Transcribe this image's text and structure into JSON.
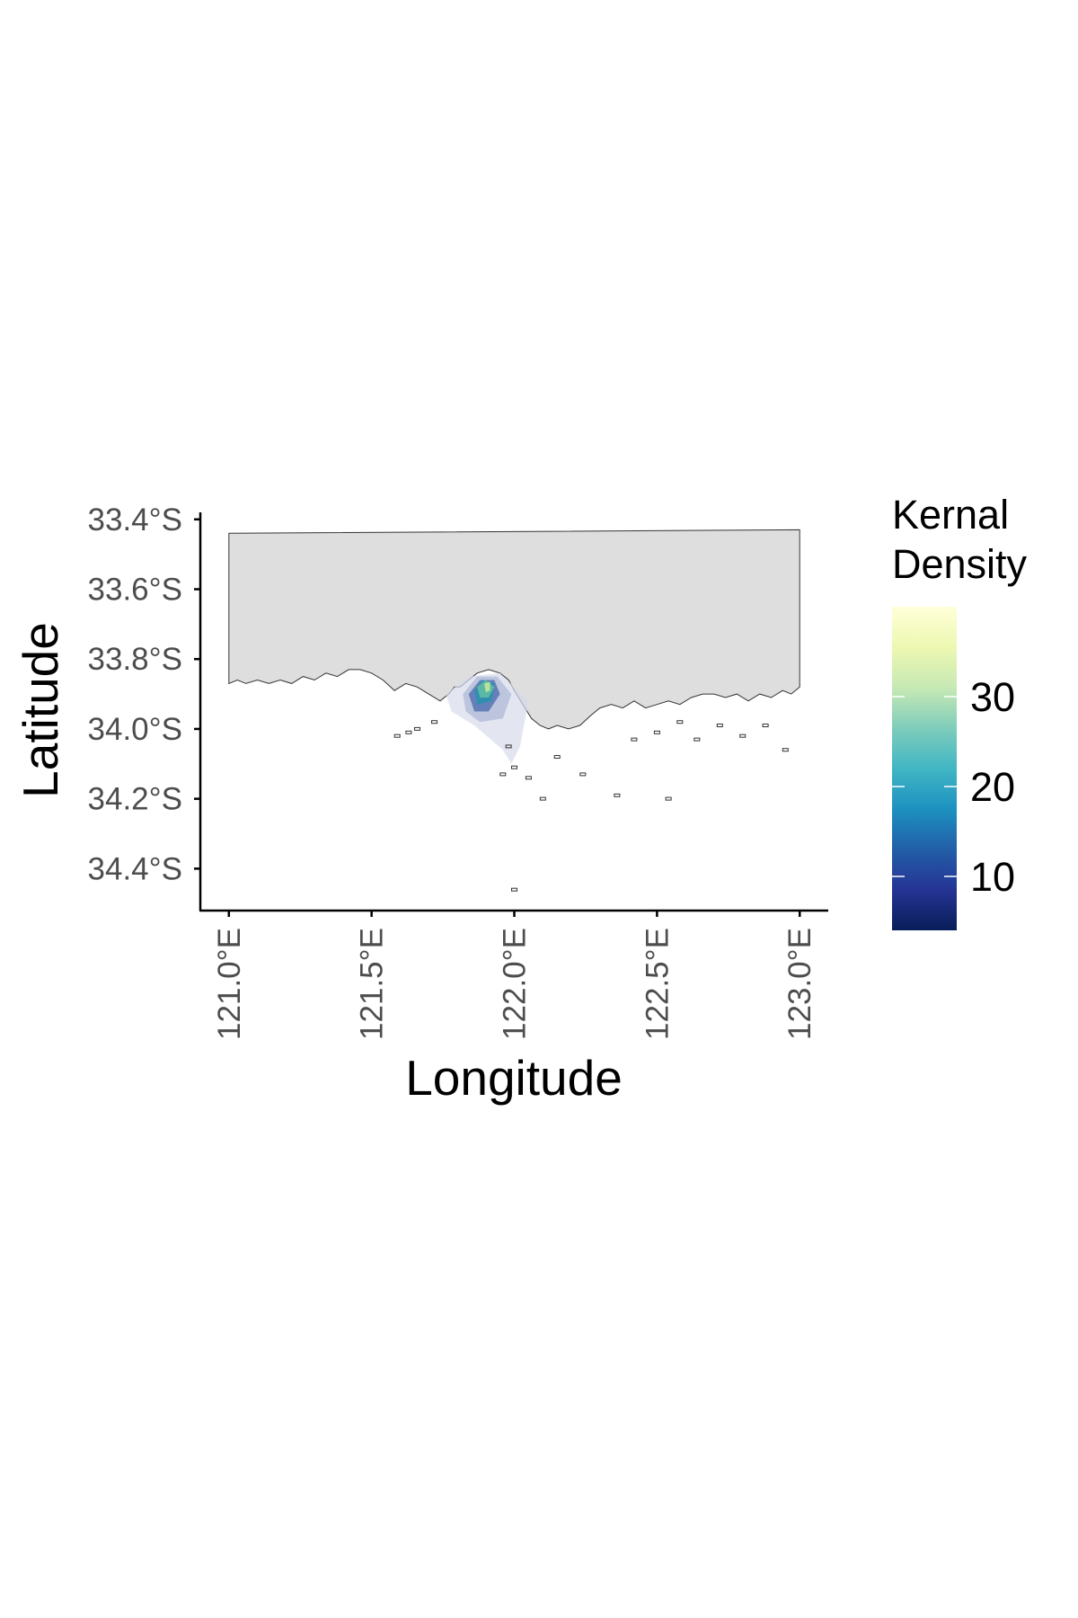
{
  "map": {
    "x_axis": {
      "title": "Longitude",
      "range": [
        120.9,
        123.1
      ],
      "ticks": [
        {
          "value": 121.0,
          "label": "121.0°E"
        },
        {
          "value": 121.5,
          "label": "121.5°E"
        },
        {
          "value": 122.0,
          "label": "122.0°E"
        },
        {
          "value": 122.5,
          "label": "122.5°E"
        },
        {
          "value": 123.0,
          "label": "123.0°E"
        }
      ]
    },
    "y_axis": {
      "title": "Latitude",
      "range": [
        -34.52,
        -33.38
      ],
      "ticks": [
        {
          "value": -33.4,
          "label": "33.4°S"
        },
        {
          "value": -33.6,
          "label": "33.6°S"
        },
        {
          "value": -33.8,
          "label": "33.8°S"
        },
        {
          "value": -34.0,
          "label": "34.0°S"
        },
        {
          "value": -34.2,
          "label": "34.2°S"
        },
        {
          "value": -34.4,
          "label": "34.4°S"
        }
      ]
    },
    "land": {
      "fill": "#dedede",
      "stroke": "#333333",
      "north_edge": [
        [
          121.0,
          -33.44
        ],
        [
          123.0,
          -33.43
        ]
      ],
      "coastline": [
        [
          121.0,
          -33.87
        ],
        [
          121.03,
          -33.86
        ],
        [
          121.06,
          -33.87
        ],
        [
          121.1,
          -33.86
        ],
        [
          121.14,
          -33.87
        ],
        [
          121.18,
          -33.86
        ],
        [
          121.22,
          -33.87
        ],
        [
          121.26,
          -33.85
        ],
        [
          121.3,
          -33.86
        ],
        [
          121.34,
          -33.84
        ],
        [
          121.38,
          -33.85
        ],
        [
          121.42,
          -33.83
        ],
        [
          121.46,
          -33.83
        ],
        [
          121.5,
          -33.84
        ],
        [
          121.54,
          -33.86
        ],
        [
          121.58,
          -33.89
        ],
        [
          121.62,
          -33.87
        ],
        [
          121.66,
          -33.88
        ],
        [
          121.7,
          -33.9
        ],
        [
          121.74,
          -33.92
        ],
        [
          121.77,
          -33.9
        ],
        [
          121.79,
          -33.88
        ],
        [
          121.81,
          -33.88
        ],
        [
          121.84,
          -33.86
        ],
        [
          121.87,
          -33.84
        ],
        [
          121.91,
          -33.83
        ],
        [
          121.95,
          -33.84
        ],
        [
          121.98,
          -33.86
        ],
        [
          122.0,
          -33.89
        ],
        [
          122.03,
          -33.93
        ],
        [
          122.06,
          -33.97
        ],
        [
          122.09,
          -33.99
        ],
        [
          122.12,
          -34.0
        ],
        [
          122.15,
          -33.99
        ],
        [
          122.19,
          -34.0
        ],
        [
          122.23,
          -33.99
        ],
        [
          122.27,
          -33.96
        ],
        [
          122.3,
          -33.94
        ],
        [
          122.34,
          -33.93
        ],
        [
          122.38,
          -33.94
        ],
        [
          122.42,
          -33.92
        ],
        [
          122.46,
          -33.94
        ],
        [
          122.5,
          -33.93
        ],
        [
          122.54,
          -33.92
        ],
        [
          122.58,
          -33.93
        ],
        [
          122.62,
          -33.91
        ],
        [
          122.66,
          -33.9
        ],
        [
          122.7,
          -33.9
        ],
        [
          122.74,
          -33.91
        ],
        [
          122.78,
          -33.9
        ],
        [
          122.82,
          -33.92
        ],
        [
          122.86,
          -33.9
        ],
        [
          122.9,
          -33.91
        ],
        [
          122.94,
          -33.89
        ],
        [
          122.97,
          -33.9
        ],
        [
          123.0,
          -33.88
        ]
      ],
      "islands": [
        [
          121.59,
          -34.02
        ],
        [
          121.63,
          -34.01
        ],
        [
          121.66,
          -34.0
        ],
        [
          121.72,
          -33.98
        ],
        [
          121.98,
          -34.05
        ],
        [
          122.0,
          -34.11
        ],
        [
          121.96,
          -34.13
        ],
        [
          122.05,
          -34.14
        ],
        [
          122.15,
          -34.08
        ],
        [
          122.24,
          -34.13
        ],
        [
          122.1,
          -34.2
        ],
        [
          122.36,
          -34.19
        ],
        [
          122.42,
          -34.03
        ],
        [
          122.5,
          -34.01
        ],
        [
          122.58,
          -33.98
        ],
        [
          122.64,
          -34.03
        ],
        [
          122.72,
          -33.99
        ],
        [
          122.8,
          -34.02
        ],
        [
          122.88,
          -33.99
        ],
        [
          122.95,
          -34.06
        ],
        [
          122.54,
          -34.2
        ],
        [
          122.0,
          -34.46
        ]
      ]
    },
    "density_contours": [
      {
        "level": 3,
        "color": "#d7dceb",
        "points": [
          [
            121.76,
            -33.9
          ],
          [
            121.84,
            -33.85
          ],
          [
            121.95,
            -33.84
          ],
          [
            122.05,
            -33.92
          ],
          [
            122.02,
            -34.05
          ],
          [
            121.99,
            -34.1
          ],
          [
            121.96,
            -34.06
          ],
          [
            121.86,
            -33.99
          ],
          [
            121.78,
            -33.95
          ]
        ]
      },
      {
        "level": 8,
        "color": "#b8c1dc",
        "points": [
          [
            121.82,
            -33.9
          ],
          [
            121.87,
            -33.85
          ],
          [
            121.94,
            -33.85
          ],
          [
            121.99,
            -33.9
          ],
          [
            121.96,
            -33.97
          ],
          [
            121.88,
            -33.98
          ],
          [
            121.83,
            -33.95
          ]
        ]
      },
      {
        "level": 14,
        "color": "#5b78b5",
        "points": [
          [
            121.84,
            -33.9
          ],
          [
            121.88,
            -33.86
          ],
          [
            121.93,
            -33.86
          ],
          [
            121.95,
            -33.9
          ],
          [
            121.91,
            -33.95
          ],
          [
            121.86,
            -33.95
          ]
        ]
      },
      {
        "level": 20,
        "color": "#2a8fb0",
        "points": [
          [
            121.86,
            -33.89
          ],
          [
            121.89,
            -33.86
          ],
          [
            121.93,
            -33.87
          ],
          [
            121.92,
            -33.92
          ],
          [
            121.87,
            -33.93
          ]
        ]
      },
      {
        "level": 27,
        "color": "#5fbca3",
        "points": [
          [
            121.87,
            -33.88
          ],
          [
            121.9,
            -33.86
          ],
          [
            121.93,
            -33.88
          ],
          [
            121.91,
            -33.91
          ],
          [
            121.88,
            -33.91
          ]
        ]
      },
      {
        "level": 34,
        "color": "#c4e79e",
        "points": [
          [
            121.895,
            -33.87
          ],
          [
            121.915,
            -33.865
          ],
          [
            121.915,
            -33.89
          ],
          [
            121.9,
            -33.895
          ]
        ]
      }
    ],
    "legend": {
      "title_line1": "Kernal",
      "title_line2": "Density",
      "range": [
        4,
        40
      ],
      "gradient_colors": [
        "#081d58",
        "#253494",
        "#225ea8",
        "#1d91c0",
        "#41b6c4",
        "#7fcdbb",
        "#c7e9b4",
        "#edf8b1",
        "#ffffd9"
      ],
      "breaks": [
        {
          "value": 10,
          "label": "10"
        },
        {
          "value": 20,
          "label": "20"
        },
        {
          "value": 30,
          "label": "30"
        }
      ]
    }
  }
}
